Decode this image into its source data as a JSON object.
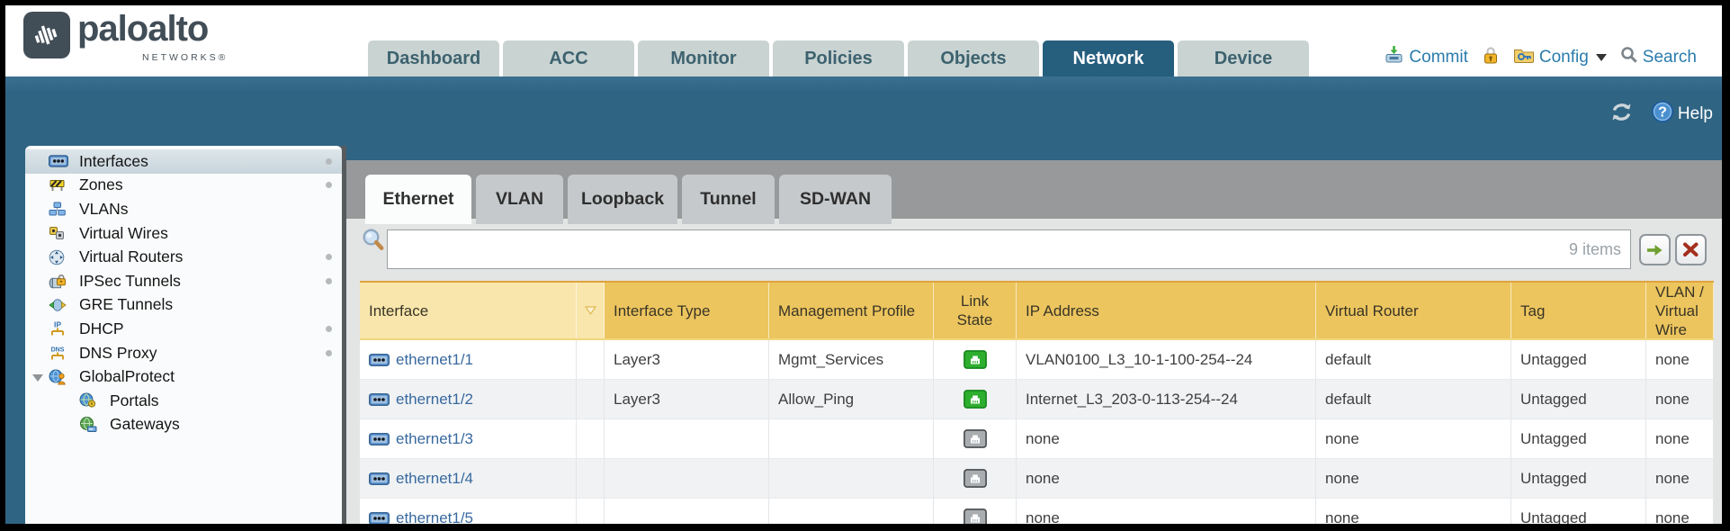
{
  "header": {
    "brand": "paloalto",
    "brand_sub": "NETWORKS®",
    "nav_tabs": [
      {
        "label": "Dashboard",
        "selected": false
      },
      {
        "label": "ACC",
        "selected": false
      },
      {
        "label": "Monitor",
        "selected": false
      },
      {
        "label": "Policies",
        "selected": false
      },
      {
        "label": "Objects",
        "selected": false
      },
      {
        "label": "Network",
        "selected": true
      },
      {
        "label": "Device",
        "selected": false
      }
    ],
    "actions": {
      "commit": "Commit",
      "config": "Config",
      "search": "Search"
    }
  },
  "toolbar": {
    "help": "Help"
  },
  "sidebar": {
    "items": [
      {
        "label": "Interfaces",
        "icon": "interfaces-icon",
        "selected": true,
        "dot": true,
        "level": 0
      },
      {
        "label": "Zones",
        "icon": "zones-icon",
        "selected": false,
        "dot": true,
        "level": 0
      },
      {
        "label": "VLANs",
        "icon": "vlans-icon",
        "selected": false,
        "dot": false,
        "level": 0
      },
      {
        "label": "Virtual Wires",
        "icon": "virtual-wires-icon",
        "selected": false,
        "dot": false,
        "level": 0
      },
      {
        "label": "Virtual Routers",
        "icon": "virtual-routers-icon",
        "selected": false,
        "dot": true,
        "level": 0
      },
      {
        "label": "IPSec Tunnels",
        "icon": "ipsec-tunnels-icon",
        "selected": false,
        "dot": true,
        "level": 0
      },
      {
        "label": "GRE Tunnels",
        "icon": "gre-tunnels-icon",
        "selected": false,
        "dot": false,
        "level": 0
      },
      {
        "label": "DHCP",
        "icon": "dhcp-icon",
        "selected": false,
        "dot": true,
        "level": 0
      },
      {
        "label": "DNS Proxy",
        "icon": "dns-proxy-icon",
        "selected": false,
        "dot": true,
        "level": 0
      },
      {
        "label": "GlobalProtect",
        "icon": "globalprotect-icon",
        "selected": false,
        "dot": false,
        "level": 0,
        "expanded": true
      },
      {
        "label": "Portals",
        "icon": "portals-icon",
        "selected": false,
        "dot": false,
        "level": 1
      },
      {
        "label": "Gateways",
        "icon": "gateways-icon",
        "selected": false,
        "dot": false,
        "level": 1
      }
    ]
  },
  "content": {
    "tabs": [
      {
        "label": "Ethernet",
        "selected": true
      },
      {
        "label": "VLAN",
        "selected": false
      },
      {
        "label": "Loopback",
        "selected": false
      },
      {
        "label": "Tunnel",
        "selected": false
      },
      {
        "label": "SD-WAN",
        "selected": false
      }
    ],
    "filter": {
      "value": "",
      "items_count": "9 items"
    },
    "table": {
      "columns": [
        "Interface",
        "Interface Type",
        "Management Profile",
        "Link State",
        "IP Address",
        "Virtual Router",
        "Tag",
        "VLAN / Virtual Wire"
      ],
      "rows": [
        {
          "interface": "ethernet1/1",
          "type": "Layer3",
          "mgmt_profile": "Mgmt_Services",
          "link_state": "up",
          "ip": "VLAN0100_L3_10-1-100-254--24",
          "virtual_router": "default",
          "tag": "Untagged",
          "vlan": "none"
        },
        {
          "interface": "ethernet1/2",
          "type": "Layer3",
          "mgmt_profile": "Allow_Ping",
          "link_state": "up",
          "ip": "Internet_L3_203-0-113-254--24",
          "virtual_router": "default",
          "tag": "Untagged",
          "vlan": "none"
        },
        {
          "interface": "ethernet1/3",
          "type": "",
          "mgmt_profile": "",
          "link_state": "unknown",
          "ip": "none",
          "virtual_router": "none",
          "tag": "Untagged",
          "vlan": "none"
        },
        {
          "interface": "ethernet1/4",
          "type": "",
          "mgmt_profile": "",
          "link_state": "unknown",
          "ip": "none",
          "virtual_router": "none",
          "tag": "Untagged",
          "vlan": "none"
        },
        {
          "interface": "ethernet1/5",
          "type": "",
          "mgmt_profile": "",
          "link_state": "unknown",
          "ip": "none",
          "virtual_router": "none",
          "tag": "Untagged",
          "vlan": "none"
        }
      ]
    }
  },
  "colors": {
    "teal": "#2f6483",
    "nav_selected": "#265e7e",
    "header_gold": "#ecc55e",
    "header_gold_light": "#f8e6ac",
    "link_blue": "#38699e",
    "link_state_up": "#2eae2e",
    "link_state_unknown": "#a9adb0"
  }
}
